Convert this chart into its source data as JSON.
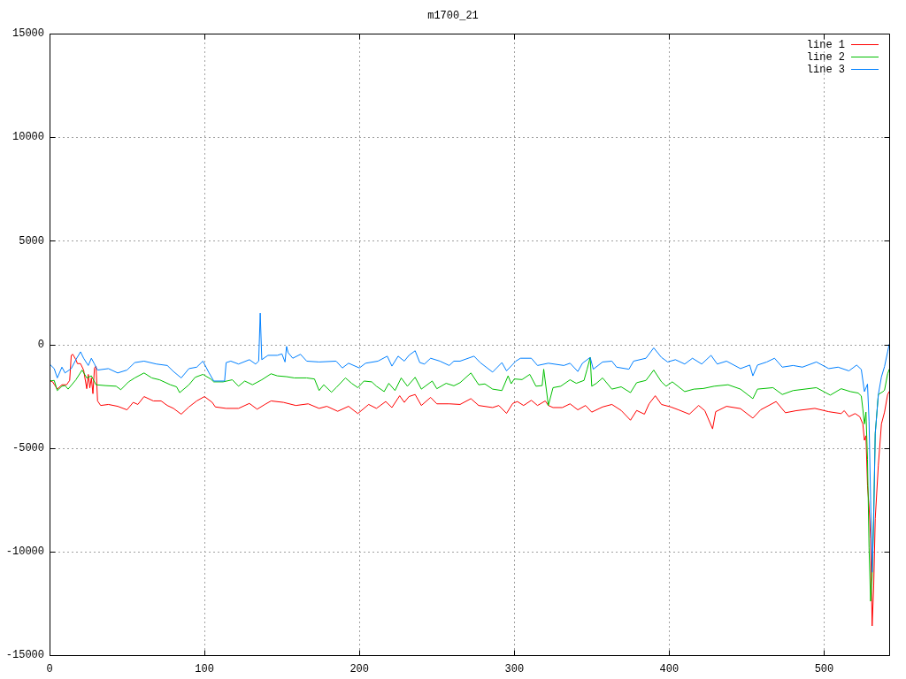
{
  "chart_data": {
    "type": "line",
    "title": "m1700_21",
    "xlim": [
      0,
      542
    ],
    "xticks": [
      0,
      100,
      200,
      300,
      400,
      500
    ],
    "ylim": [
      -15000,
      15000
    ],
    "yticks": [
      -15000,
      -10000,
      -5000,
      0,
      5000,
      10000,
      15000
    ],
    "grid": true,
    "legend": "top right",
    "series": [
      {
        "name": "line 1",
        "color": "#ff0000",
        "x": [
          0,
          2,
          5,
          8,
          11,
          13,
          14,
          15,
          17,
          18,
          20,
          22,
          24,
          25,
          26,
          27,
          28,
          29,
          30,
          31,
          33,
          38,
          44,
          50,
          54,
          57,
          61,
          67,
          72,
          76,
          80,
          85,
          90,
          95,
          100,
          105,
          107,
          114,
          122,
          129,
          134,
          139,
          143,
          151,
          159,
          167,
          174,
          179,
          186,
          193,
          199,
          206,
          211,
          217,
          221,
          226,
          229,
          232,
          236,
          240,
          246,
          250,
          258,
          265,
          272,
          277,
          286,
          290,
          295,
          299,
          302,
          306,
          311,
          315,
          320,
          322,
          325,
          331,
          336,
          341,
          346,
          350,
          357,
          363,
          369,
          375,
          379,
          384,
          387,
          391,
          395,
          401,
          406,
          413,
          419,
          423,
          428,
          430,
          437,
          446,
          454,
          459,
          469,
          475,
          482,
          494,
          503,
          511,
          513,
          516,
          520,
          523,
          525,
          526,
          527,
          528,
          529,
          530,
          531,
          532,
          533,
          535,
          537,
          539,
          541,
          542
        ],
        "values": [
          -1740,
          -1810,
          -2160,
          -1950,
          -1950,
          -1740,
          -530,
          -480,
          -740,
          -930,
          -930,
          -1240,
          -2140,
          -1450,
          -2100,
          -1620,
          -2380,
          -1140,
          -1050,
          -2730,
          -2950,
          -2900,
          -2990,
          -3160,
          -2800,
          -2900,
          -2520,
          -2730,
          -2730,
          -2950,
          -3090,
          -3370,
          -3020,
          -2730,
          -2520,
          -2800,
          -3020,
          -3090,
          -3090,
          -2850,
          -3130,
          -2900,
          -2730,
          -2800,
          -2950,
          -2870,
          -3090,
          -2990,
          -3230,
          -2990,
          -3340,
          -2900,
          -3090,
          -2760,
          -3050,
          -2480,
          -2800,
          -2520,
          -2420,
          -2950,
          -2560,
          -2870,
          -2870,
          -2900,
          -2620,
          -2950,
          -3050,
          -2950,
          -3330,
          -2850,
          -2760,
          -2950,
          -2700,
          -2950,
          -2730,
          -2950,
          -3050,
          -3050,
          -2870,
          -3160,
          -2950,
          -3270,
          -3020,
          -2900,
          -3190,
          -3660,
          -3190,
          -3370,
          -2870,
          -2480,
          -2900,
          -3020,
          -3160,
          -3370,
          -2950,
          -3200,
          -4080,
          -3250,
          -2990,
          -3100,
          -3560,
          -3160,
          -2760,
          -3300,
          -3200,
          -3090,
          -3250,
          -3340,
          -3200,
          -3490,
          -3340,
          -3490,
          -3840,
          -4630,
          -4410,
          -6830,
          -7830,
          -9390,
          -13590,
          -11670,
          -8400,
          -5830,
          -3840,
          -3270,
          -2420,
          -2280
        ]
      },
      {
        "name": "line 2",
        "color": "#00c000",
        "x": [
          0,
          3,
          5,
          8,
          10,
          12,
          17,
          21,
          24,
          27,
          30,
          36,
          43,
          46,
          51,
          55,
          61,
          66,
          71,
          78,
          82,
          84,
          90,
          94,
          99,
          104,
          106,
          112,
          118,
          122,
          126,
          131,
          137,
          143,
          147,
          153,
          158,
          166,
          171,
          174,
          177,
          182,
          185,
          191,
          195,
          199,
          203,
          208,
          211,
          216,
          219,
          223,
          227,
          231,
          236,
          240,
          247,
          250,
          256,
          261,
          265,
          272,
          277,
          281,
          286,
          292,
          296,
          298,
          300,
          305,
          310,
          314,
          318,
          319,
          322,
          325,
          330,
          336,
          340,
          345,
          347,
          349,
          350,
          353,
          357,
          363,
          369,
          375,
          379,
          385,
          390,
          395,
          398,
          402,
          410,
          416,
          422,
          429,
          438,
          446,
          454,
          457,
          467,
          473,
          480,
          495,
          504,
          511,
          517,
          522,
          524,
          525,
          526,
          527,
          528,
          529,
          530,
          531,
          532,
          533,
          535,
          538,
          539,
          541,
          542
        ],
        "values": [
          -1770,
          -1740,
          -2230,
          -2020,
          -1990,
          -2160,
          -1710,
          -1240,
          -1620,
          -1520,
          -1950,
          -1990,
          -2020,
          -2190,
          -1810,
          -1620,
          -1380,
          -1620,
          -1710,
          -1950,
          -2050,
          -2330,
          -1950,
          -1590,
          -1450,
          -1670,
          -1810,
          -1810,
          -1710,
          -2020,
          -1770,
          -1950,
          -1710,
          -1420,
          -1520,
          -1560,
          -1620,
          -1620,
          -1670,
          -2230,
          -1950,
          -2310,
          -2090,
          -1620,
          -1880,
          -2090,
          -1770,
          -1810,
          -2020,
          -2280,
          -1880,
          -2230,
          -1620,
          -2020,
          -1590,
          -2160,
          -1770,
          -2140,
          -1880,
          -2000,
          -1850,
          -1380,
          -1950,
          -1910,
          -2160,
          -2230,
          -1520,
          -1900,
          -1670,
          -1700,
          -1450,
          -2020,
          -1990,
          -1200,
          -2950,
          -2090,
          -2020,
          -1710,
          -1880,
          -1740,
          -1200,
          -630,
          -2020,
          -1880,
          -1620,
          -2160,
          -2050,
          -2330,
          -1850,
          -1740,
          -1240,
          -1810,
          -2020,
          -1810,
          -2280,
          -2160,
          -2130,
          -2020,
          -1950,
          -2160,
          -2620,
          -2160,
          -2090,
          -2420,
          -2230,
          -2090,
          -2450,
          -2140,
          -2280,
          -2350,
          -2490,
          -3130,
          -3840,
          -3270,
          -5550,
          -9800,
          -12400,
          -11200,
          -8100,
          -4300,
          -2420,
          -2280,
          -2210,
          -1420,
          -1210
        ]
      },
      {
        "name": "line 3",
        "color": "#0080ff",
        "x": [
          0,
          3,
          5,
          8,
          10,
          14,
          17,
          20,
          22,
          25,
          27,
          29,
          31,
          38,
          44,
          50,
          55,
          61,
          69,
          76,
          80,
          85,
          90,
          95,
          99,
          103,
          106,
          113,
          114,
          117,
          122,
          129,
          133,
          135,
          136,
          137,
          141,
          147,
          150,
          152,
          153,
          154,
          157,
          162,
          166,
          174,
          185,
          189,
          193,
          200,
          204,
          212,
          218,
          221,
          225,
          229,
          232,
          236,
          239,
          242,
          246,
          252,
          258,
          261,
          265,
          274,
          278,
          286,
          292,
          295,
          301,
          304,
          311,
          315,
          322,
          332,
          336,
          341,
          344,
          349,
          351,
          357,
          363,
          366,
          374,
          377,
          385,
          390,
          395,
          399,
          404,
          410,
          415,
          421,
          427,
          431,
          437,
          446,
          452,
          454,
          457,
          463,
          468,
          473,
          480,
          486,
          495,
          503,
          509,
          516,
          521,
          524,
          526,
          528,
          529,
          530,
          531,
          532,
          533,
          535,
          537,
          539,
          541,
          542
        ],
        "values": [
          -950,
          -1170,
          -1620,
          -1100,
          -1380,
          -1170,
          -740,
          -360,
          -670,
          -1020,
          -670,
          -950,
          -1240,
          -1170,
          -1380,
          -1240,
          -880,
          -810,
          -950,
          -1020,
          -1310,
          -1620,
          -1170,
          -1100,
          -810,
          -1380,
          -1770,
          -1770,
          -880,
          -810,
          -950,
          -740,
          -950,
          -810,
          1510,
          -740,
          -530,
          -530,
          -460,
          -850,
          -100,
          -400,
          -670,
          -480,
          -810,
          -850,
          -810,
          -1140,
          -910,
          -1140,
          -910,
          -810,
          -570,
          -1050,
          -570,
          -810,
          -530,
          -310,
          -880,
          -950,
          -670,
          -810,
          -1020,
          -810,
          -810,
          -570,
          -880,
          -1340,
          -880,
          -1280,
          -810,
          -670,
          -670,
          -1020,
          -910,
          -1020,
          -910,
          -1310,
          -910,
          -630,
          -1200,
          -850,
          -810,
          -1100,
          -1200,
          -810,
          -670,
          -170,
          -630,
          -850,
          -740,
          -950,
          -670,
          -950,
          -530,
          -950,
          -810,
          -1170,
          -1000,
          -1520,
          -1000,
          -850,
          -670,
          -1100,
          -1020,
          -1100,
          -850,
          -1170,
          -1100,
          -1280,
          -1000,
          -1210,
          -2280,
          -1920,
          -3700,
          -7500,
          -11000,
          -8500,
          -4300,
          -2420,
          -1570,
          -1070,
          -360,
          0
        ]
      }
    ]
  }
}
